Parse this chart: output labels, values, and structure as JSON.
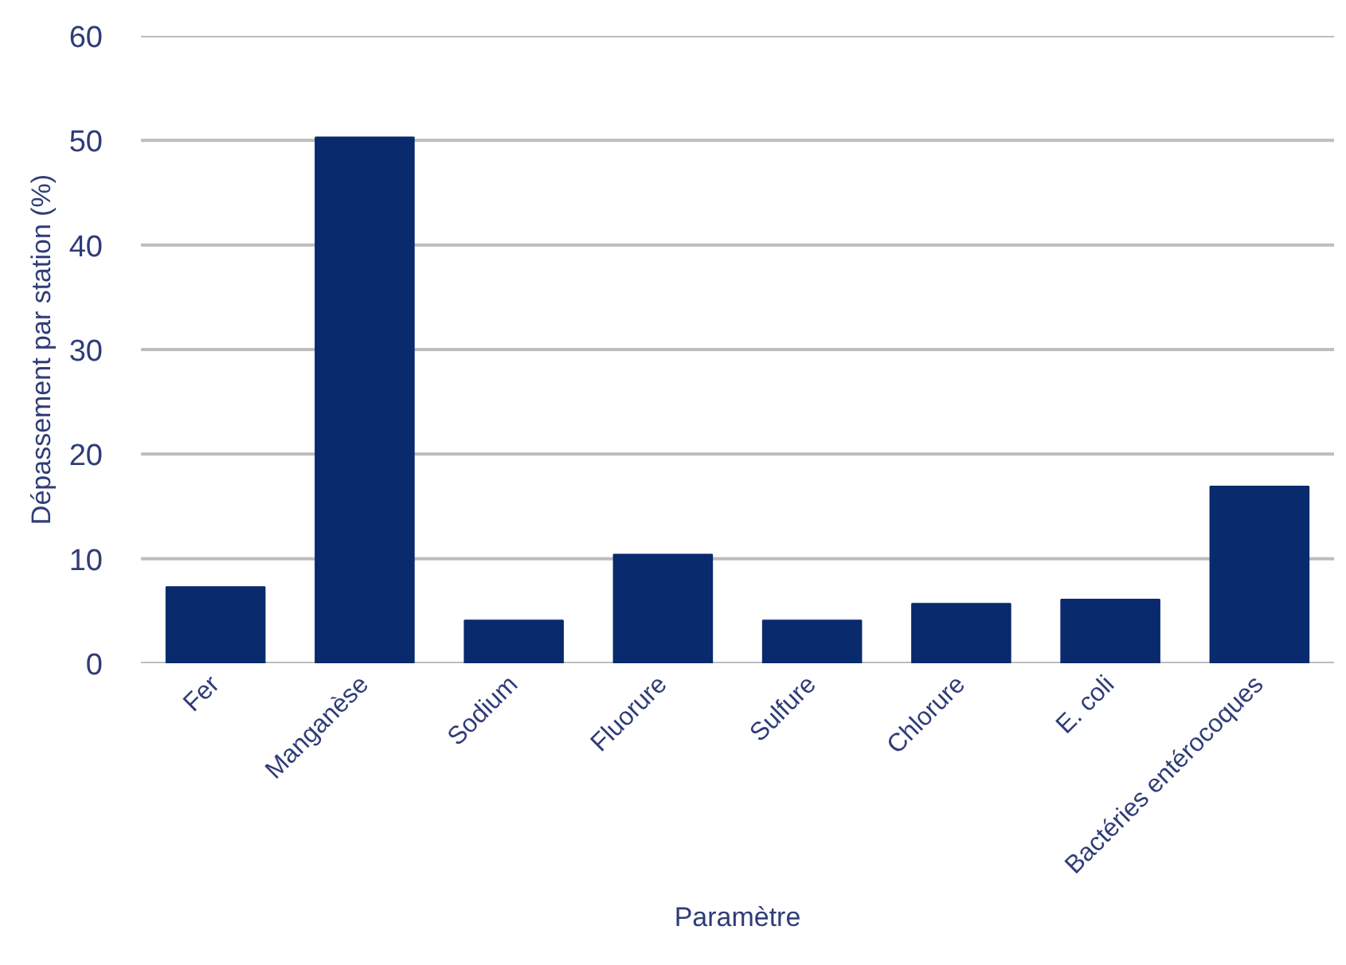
{
  "chart_data": {
    "type": "bar",
    "xlabel": "Paramètre",
    "ylabel": "Dépassement par station (%)",
    "categories": [
      "Fer",
      "Manganèse",
      "Sodium",
      "Fluorure",
      "Sulfure",
      "Chlorure",
      "E. coli",
      "Bactéries entérocoques"
    ],
    "values": [
      7.3,
      50.3,
      4.1,
      10.4,
      4.1,
      5.7,
      6.1,
      16.9
    ],
    "color": "#0a2a6e",
    "ylim": [
      0,
      60
    ],
    "yticks": [
      0,
      10,
      20,
      30,
      40,
      50,
      60
    ],
    "grid": "y"
  }
}
